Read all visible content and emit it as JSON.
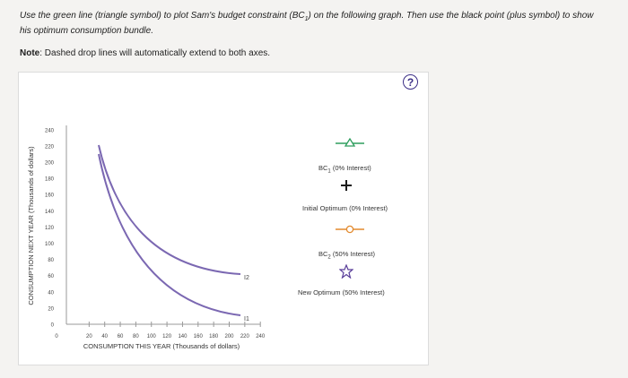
{
  "instructions": {
    "text_a": "Use the green line (triangle symbol) to plot Sam's budget constraint (BC",
    "text_sub": "1",
    "text_b": ") on the following graph. Then use the black point (plus symbol) to show his optimum consumption bundle."
  },
  "note": {
    "label": "Note",
    "text": ": Dashed drop lines will automatically extend to both axes."
  },
  "help_label": "?",
  "graph": {
    "ylabel": "CONSUMPTION NEXT YEAR (Thousands of dollars)",
    "xlabel": "CONSUMPTION THIS YEAR (Thousands of dollars)",
    "y_ticks": [
      "0",
      "20",
      "40",
      "60",
      "80",
      "100",
      "120",
      "140",
      "160",
      "180",
      "200",
      "220",
      "240"
    ],
    "x_ticks": [
      "0",
      "20",
      "40",
      "60",
      "80",
      "100",
      "120",
      "140",
      "160",
      "180",
      "200",
      "220",
      "240"
    ],
    "curve_labels": [
      "I2",
      "I1"
    ]
  },
  "legend": {
    "bc1_prefix": "BC",
    "bc1_sub": "1",
    "bc1_suffix": "(0% Interest)",
    "initial_optimum": "Initial Optimum (0% Interest)",
    "bc2_prefix": "BC",
    "bc2_sub": "2",
    "bc2_suffix": "(50% Interest)",
    "new_optimum": "New Optimum (50% Interest)"
  },
  "colors": {
    "curve": "#7b68b2",
    "green_tool": "#2f9e5e",
    "black_tool": "#1a1a1a",
    "orange_tool": "#e38a2e",
    "purple_tool": "#5a3f9a",
    "help": "#3b2e86"
  }
}
